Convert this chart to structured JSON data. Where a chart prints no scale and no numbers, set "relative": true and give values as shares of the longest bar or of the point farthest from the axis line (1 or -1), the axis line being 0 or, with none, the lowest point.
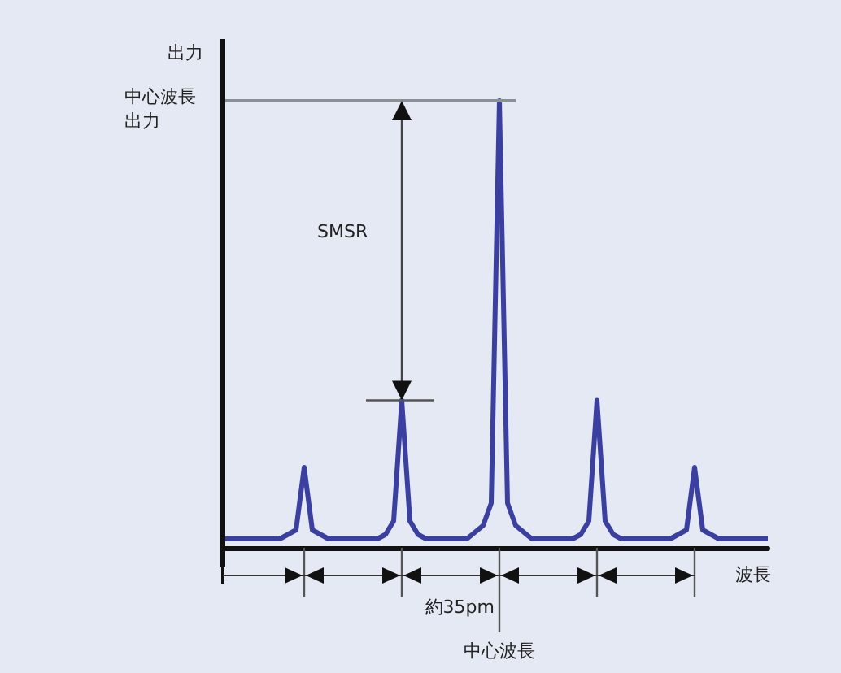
{
  "chart_data": {
    "type": "line",
    "relative": true,
    "ylabel": "出力",
    "xlabel": "波長",
    "marker": "none",
    "categories": [
      null,
      null,
      null,
      null,
      null,
      null,
      null,
      null,
      null,
      null,
      null,
      null,
      null,
      null,
      null,
      null,
      null,
      null,
      null,
      null,
      null,
      null,
      null,
      null,
      null,
      null,
      null,
      null,
      null,
      null,
      null,
      null,
      null,
      null,
      null,
      null,
      null,
      null,
      null,
      null,
      null,
      null,
      null,
      null,
      null,
      null,
      null,
      null,
      null,
      null,
      null,
      null,
      null,
      null,
      null,
      null,
      null,
      null,
      null,
      null,
      null,
      null,
      null,
      null,
      null,
      null,
      null,
      null
    ],
    "series": [
      {
        "color": "#3a3fa0",
        "values": [
          0.02,
          0.02,
          0.02,
          0.02,
          0.02,
          0.02,
          0.02,
          0.02,
          0.03,
          0.04,
          0.18,
          0.04,
          0.03,
          0.02,
          0.02,
          0.02,
          0.02,
          0.02,
          0.02,
          0.02,
          0.03,
          0.06,
          0.33,
          0.06,
          0.03,
          0.02,
          0.02,
          0.02,
          0.02,
          0.02,
          0.02,
          0.035,
          0.05,
          0.1,
          1,
          0.1,
          0.05,
          0.035,
          0.02,
          0.02,
          0.02,
          0.02,
          0.02,
          0.02,
          0.03,
          0.06,
          0.33,
          0.06,
          0.03,
          0.02,
          0.02,
          0.02,
          0.02,
          0.02,
          0.02,
          0.02,
          0.03,
          0.04,
          0.18,
          0.04,
          0.03,
          0.02,
          0.02,
          0.02,
          0.02,
          0.02,
          0.02,
          0.02
        ]
      }
    ],
    "ref_lines": [
      {
        "axis": "y",
        "value": 1,
        "label": "中心波長出力",
        "color": "#8a8f98"
      }
    ],
    "annotations": [
      "SMSR",
      "約35pm",
      "中心波長"
    ]
  }
}
